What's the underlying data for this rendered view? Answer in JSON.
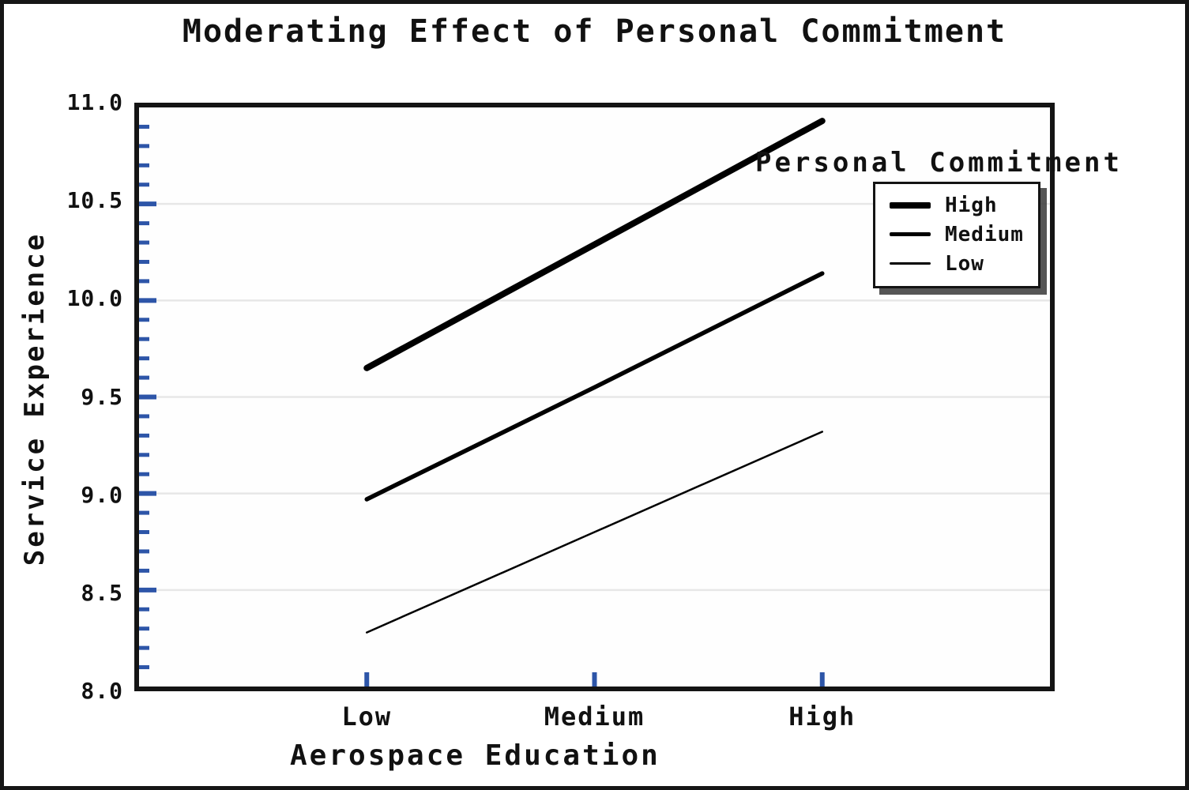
{
  "chart_data": {
    "type": "line",
    "title": "Moderating Effect of Personal Commitment",
    "xlabel": "Aerospace Education",
    "ylabel": "Service Experience",
    "categories": [
      "Low",
      "Medium",
      "High"
    ],
    "series": [
      {
        "name": "High",
        "values": [
          9.65,
          10.29,
          10.93
        ],
        "weight": "thick"
      },
      {
        "name": "Medium",
        "values": [
          8.97,
          9.55,
          10.14
        ],
        "weight": "medium"
      },
      {
        "name": "Low",
        "values": [
          8.28,
          8.8,
          9.32
        ],
        "weight": "thin"
      }
    ],
    "ylim": [
      8.0,
      11.0
    ],
    "y_major_tick_labels": [
      "11.0",
      "10.5",
      "10.0",
      "9.5",
      "9.0",
      "8.5",
      "8.0"
    ],
    "y_major_step": 0.5,
    "y_minor_step": 0.1,
    "grid": true,
    "legend_title": "Personal Commitment",
    "legend_position": "top-right",
    "legend_entries": [
      "High",
      "Medium",
      "Low"
    ],
    "colors": {
      "line": "#000000",
      "tick": "#2d55a8",
      "grid": "#e7e7e7",
      "frame": "#141414"
    }
  }
}
